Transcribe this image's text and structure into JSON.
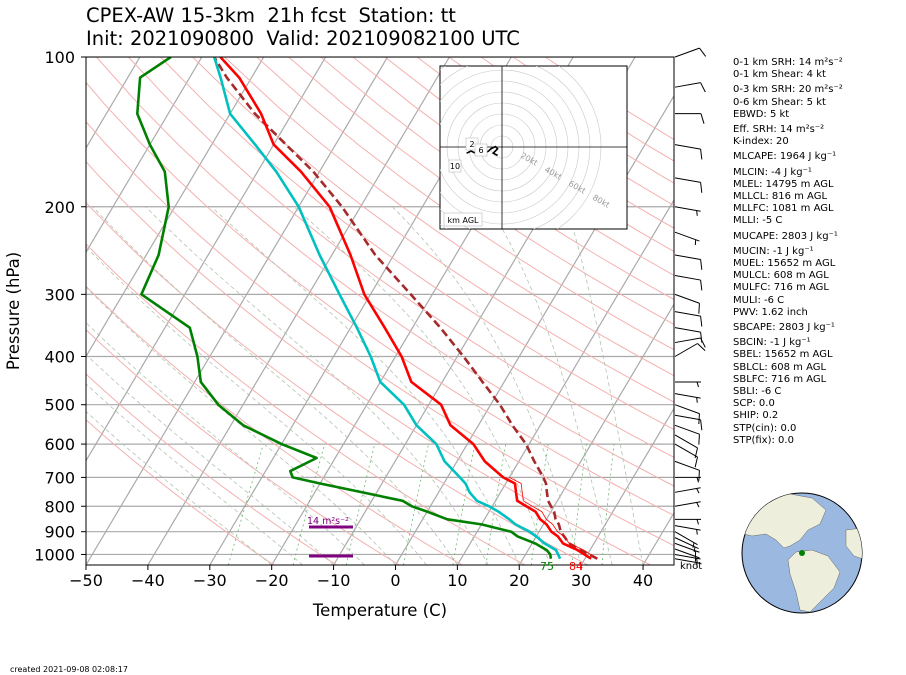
{
  "title": {
    "line1": "CPEX-AW 15-3km  21h fcst  Station: tt",
    "line2": "Init: 2021090800  Valid: 202109082100 UTC"
  },
  "created": "created 2021-09-08 02:08:17",
  "indices": [
    "0-1 km SRH: 14 m²s⁻²",
    "0-1 km Shear: 4 kt",
    "0-3 km SRH: 20 m²s⁻²",
    "0-6 km Shear: 5 kt",
    "EBWD: 5 kt",
    "Eff. SRH: 14 m²s⁻²",
    "K-index: 20",
    "MLCAPE: 1964 J kg⁻¹",
    "MLCIN: -4 J kg⁻¹",
    "MLEL: 14795 m AGL",
    "MLLCL: 816 m AGL",
    "MLLFC: 1081 m AGL",
    "MLLI: -5 C",
    "MUCAPE: 2803 J kg⁻¹",
    "MUCIN: -1 J kg⁻¹",
    "MUEL: 15652 m AGL",
    "MULCL: 608 m AGL",
    "MULFC: 716 m AGL",
    "MULI: -6 C",
    "PWV: 1.62 inch",
    "SBCAPE: 2803 J kg⁻¹",
    "SBCIN: -1 J kg⁻¹",
    "SBEL: 15652 m AGL",
    "SBLCL: 608 m AGL",
    "SBLFC: 716 m AGL",
    "SBLI: -6 C",
    "SCP: 0.0",
    "SHIP: 0.2",
    "STP(cin): 0.0",
    "STP(fix): 0.0"
  ],
  "chart_data": {
    "type": "line",
    "title": "CPEX-AW 15-3km  21h fcst  Station: tt",
    "xlabel": "Temperature (C)",
    "ylabel": "Pressure (hPa)",
    "xlim": [
      -50,
      45
    ],
    "ylim": [
      1050,
      100
    ],
    "y_scale": "log",
    "skew": "skew-T",
    "x_ticks": [
      -50,
      -40,
      -30,
      -20,
      -10,
      0,
      10,
      20,
      30,
      40
    ],
    "y_ticks": [
      100,
      200,
      300,
      400,
      500,
      600,
      700,
      800,
      900,
      1000
    ],
    "wind_unit": "knot",
    "surface_temp_label": "84",
    "surface_dewpoint_label": "75",
    "srh_label": "14 m²s⁻²",
    "series": [
      {
        "name": "temperature",
        "color": "#ff0000",
        "points": [
          [
            31.0,
            1020
          ],
          [
            28.0,
            980
          ],
          [
            25.0,
            950
          ],
          [
            23.5,
            920
          ],
          [
            22.0,
            900
          ],
          [
            20.5,
            870
          ],
          [
            19.0,
            850
          ],
          [
            17.5,
            820
          ],
          [
            15.5,
            800
          ],
          [
            13.5,
            780
          ],
          [
            12.5,
            750
          ],
          [
            11.5,
            720
          ],
          [
            9.0,
            700
          ],
          [
            4.5,
            650
          ],
          [
            1.0,
            600
          ],
          [
            -4.5,
            550
          ],
          [
            -8.0,
            500
          ],
          [
            -15.0,
            450
          ],
          [
            -19.0,
            400
          ],
          [
            -24.5,
            350
          ],
          [
            -31.0,
            300
          ],
          [
            -37.0,
            250
          ],
          [
            -45.0,
            200
          ],
          [
            -53.0,
            170
          ],
          [
            -60.0,
            150
          ],
          [
            -65.0,
            130
          ],
          [
            -72.0,
            110
          ],
          [
            -77.0,
            100
          ]
        ]
      },
      {
        "name": "dewpoint",
        "color": "#008000",
        "points": [
          [
            24.5,
            1020
          ],
          [
            24.0,
            1000
          ],
          [
            23.0,
            980
          ],
          [
            20.5,
            950
          ],
          [
            17.0,
            920
          ],
          [
            15.5,
            900
          ],
          [
            10.0,
            870
          ],
          [
            4.0,
            850
          ],
          [
            0.0,
            820
          ],
          [
            -3.0,
            800
          ],
          [
            -5.0,
            780
          ],
          [
            -20.0,
            720
          ],
          [
            -25.0,
            700
          ],
          [
            -26.0,
            680
          ],
          [
            -23.0,
            640
          ],
          [
            -30.0,
            600
          ],
          [
            -38.0,
            550
          ],
          [
            -44.0,
            500
          ],
          [
            -49.0,
            450
          ],
          [
            -52.0,
            400
          ],
          [
            -56.0,
            350
          ],
          [
            -67.0,
            300
          ],
          [
            -68.0,
            250
          ],
          [
            -71.0,
            200
          ],
          [
            -75.0,
            170
          ],
          [
            -80.0,
            150
          ],
          [
            -85.0,
            130
          ],
          [
            -88.0,
            110
          ],
          [
            -85.0,
            100
          ]
        ]
      },
      {
        "name": "wet-bulb",
        "color": "#00c0c0",
        "points": [
          [
            26.0,
            1020
          ],
          [
            24.5,
            980
          ],
          [
            22.0,
            950
          ],
          [
            20.0,
            920
          ],
          [
            18.5,
            900
          ],
          [
            15.5,
            870
          ],
          [
            14.0,
            850
          ],
          [
            11.5,
            820
          ],
          [
            9.5,
            800
          ],
          [
            7.0,
            780
          ],
          [
            5.0,
            750
          ],
          [
            3.5,
            720
          ],
          [
            2.0,
            700
          ],
          [
            -2.0,
            650
          ],
          [
            -5.0,
            600
          ],
          [
            -10.0,
            550
          ],
          [
            -14.0,
            500
          ],
          [
            -20.0,
            450
          ],
          [
            -24.0,
            400
          ],
          [
            -29.0,
            350
          ],
          [
            -35.0,
            300
          ],
          [
            -42.0,
            250
          ],
          [
            -50.0,
            200
          ],
          [
            -57.0,
            170
          ],
          [
            -63.0,
            150
          ],
          [
            -70.0,
            130
          ],
          [
            -75.0,
            110
          ],
          [
            -78.0,
            100
          ]
        ]
      },
      {
        "name": "parcel",
        "color": "#a52a2a",
        "dashed": true,
        "points": [
          [
            32.0,
            1020
          ],
          [
            28.5,
            980
          ],
          [
            26.0,
            950
          ],
          [
            24.5,
            920
          ],
          [
            23.5,
            900
          ],
          [
            22.5,
            870
          ],
          [
            21.5,
            850
          ],
          [
            20.5,
            820
          ],
          [
            19.5,
            800
          ],
          [
            18.5,
            780
          ],
          [
            17.5,
            750
          ],
          [
            16.5,
            720
          ],
          [
            15.5,
            700
          ],
          [
            12.5,
            650
          ],
          [
            9.5,
            600
          ],
          [
            5.5,
            550
          ],
          [
            1.5,
            500
          ],
          [
            -3.5,
            450
          ],
          [
            -9.0,
            400
          ],
          [
            -15.5,
            350
          ],
          [
            -23.5,
            300
          ],
          [
            -33.0,
            250
          ],
          [
            -43.0,
            200
          ],
          [
            -51.0,
            170
          ],
          [
            -58.0,
            150
          ],
          [
            -66.0,
            130
          ],
          [
            -74.0,
            110
          ],
          [
            -78.0,
            100
          ]
        ]
      }
    ],
    "wind_barbs": [
      {
        "p": 1020,
        "spd": 5,
        "dir": 100
      },
      {
        "p": 1000,
        "spd": 5,
        "dir": 100
      },
      {
        "p": 975,
        "spd": 5,
        "dir": 110
      },
      {
        "p": 950,
        "spd": 5,
        "dir": 110
      },
      {
        "p": 925,
        "spd": 5,
        "dir": 115
      },
      {
        "p": 900,
        "spd": 5,
        "dir": 120
      },
      {
        "p": 875,
        "spd": 5,
        "dir": 100
      },
      {
        "p": 850,
        "spd": 5,
        "dir": 90
      },
      {
        "p": 800,
        "spd": 5,
        "dir": 80
      },
      {
        "p": 750,
        "spd": 5,
        "dir": 80
      },
      {
        "p": 700,
        "spd": 5,
        "dir": 90
      },
      {
        "p": 650,
        "spd": 10,
        "dir": 110
      },
      {
        "p": 600,
        "spd": 10,
        "dir": 120
      },
      {
        "p": 575,
        "spd": 10,
        "dir": 120
      },
      {
        "p": 550,
        "spd": 10,
        "dir": 110
      },
      {
        "p": 525,
        "spd": 10,
        "dir": 100
      },
      {
        "p": 500,
        "spd": 10,
        "dir": 110
      },
      {
        "p": 475,
        "spd": 5,
        "dir": 100
      },
      {
        "p": 450,
        "spd": 5,
        "dir": 90
      },
      {
        "p": 400,
        "spd": 10,
        "dir": 60
      },
      {
        "p": 375,
        "spd": 10,
        "dir": 80
      },
      {
        "p": 350,
        "spd": 10,
        "dir": 100
      },
      {
        "p": 325,
        "spd": 10,
        "dir": 100
      },
      {
        "p": 300,
        "spd": 10,
        "dir": 110
      },
      {
        "p": 275,
        "spd": 10,
        "dir": 100
      },
      {
        "p": 250,
        "spd": 10,
        "dir": 100
      },
      {
        "p": 225,
        "spd": 5,
        "dir": 110
      },
      {
        "p": 200,
        "spd": 5,
        "dir": 100
      },
      {
        "p": 175,
        "spd": 10,
        "dir": 100
      },
      {
        "p": 150,
        "spd": 10,
        "dir": 100
      },
      {
        "p": 130,
        "spd": 10,
        "dir": 90
      },
      {
        "p": 115,
        "spd": 10,
        "dir": 80
      },
      {
        "p": 100,
        "spd": 10,
        "dir": 70
      }
    ],
    "hodograph": {
      "label": "km AGL",
      "ring_labels": [
        "20kt",
        "40kt",
        "60kt",
        "80kt"
      ],
      "height_labels": [
        "2",
        "6",
        "10"
      ],
      "points_uv": [
        [
          -2,
          -2
        ],
        [
          -4,
          -1
        ],
        [
          -3,
          0
        ],
        [
          -2,
          1
        ],
        [
          -3,
          2
        ],
        [
          -5,
          1
        ],
        [
          -6,
          0
        ],
        [
          -8,
          -1
        ],
        [
          -10,
          0
        ],
        [
          -12,
          -1
        ],
        [
          -14,
          0
        ],
        [
          -16,
          -1
        ]
      ]
    },
    "globe": {
      "marker_lat": 10.5,
      "marker_lon": -61.3
    }
  }
}
